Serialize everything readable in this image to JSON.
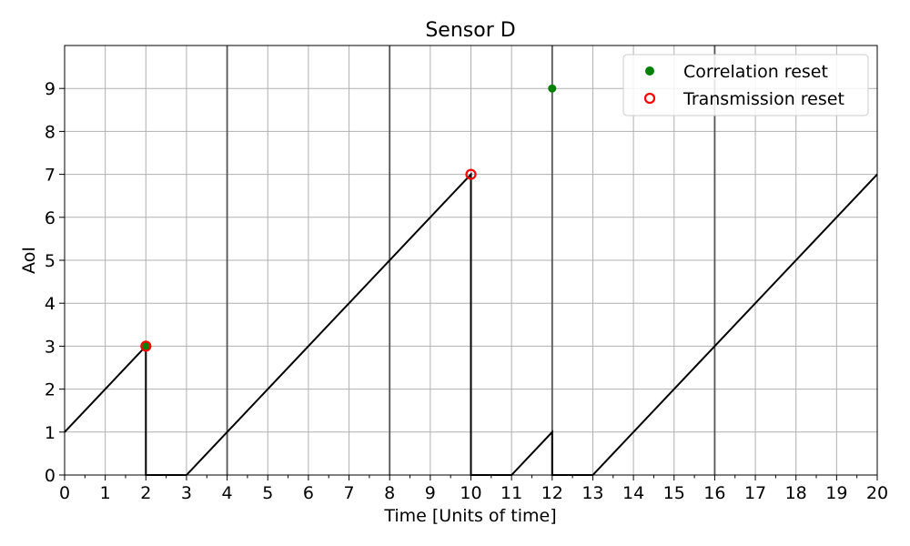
{
  "chart_data": {
    "type": "line",
    "title": "Sensor D",
    "xlabel": "Time [Units of time]",
    "ylabel": "AoI",
    "xlim": [
      0,
      20
    ],
    "ylim": [
      0,
      10
    ],
    "x_ticks": [
      "0",
      "1",
      "2",
      "3",
      "4",
      "5",
      "6",
      "7",
      "8",
      "9",
      "10",
      "11",
      "12",
      "13",
      "14",
      "15",
      "16",
      "17",
      "18",
      "19",
      "20"
    ],
    "y_ticks": [
      "0",
      "1",
      "2",
      "3",
      "4",
      "5",
      "6",
      "7",
      "8",
      "9"
    ],
    "grid": true,
    "legend_position": "top-right",
    "vertical_markers": [
      4,
      8,
      12,
      16
    ],
    "series": [
      {
        "kind": "line",
        "color": "#000000",
        "points": [
          [
            0,
            1
          ],
          [
            2,
            3
          ],
          [
            2,
            0
          ],
          [
            3,
            0
          ],
          [
            10,
            7
          ],
          [
            10,
            0
          ],
          [
            11,
            0
          ],
          [
            12,
            1
          ],
          [
            12,
            0
          ],
          [
            13,
            0
          ],
          [
            20,
            7
          ]
        ]
      },
      {
        "kind": "scatter",
        "name": "Correlation reset",
        "marker": "filled-circle",
        "color": "#008000",
        "points": [
          [
            2,
            3
          ],
          [
            12,
            9
          ]
        ]
      },
      {
        "kind": "scatter",
        "name": "Transmission reset",
        "marker": "open-circle",
        "color": "#ff0000",
        "points": [
          [
            2,
            3
          ],
          [
            10,
            7
          ]
        ]
      }
    ]
  }
}
